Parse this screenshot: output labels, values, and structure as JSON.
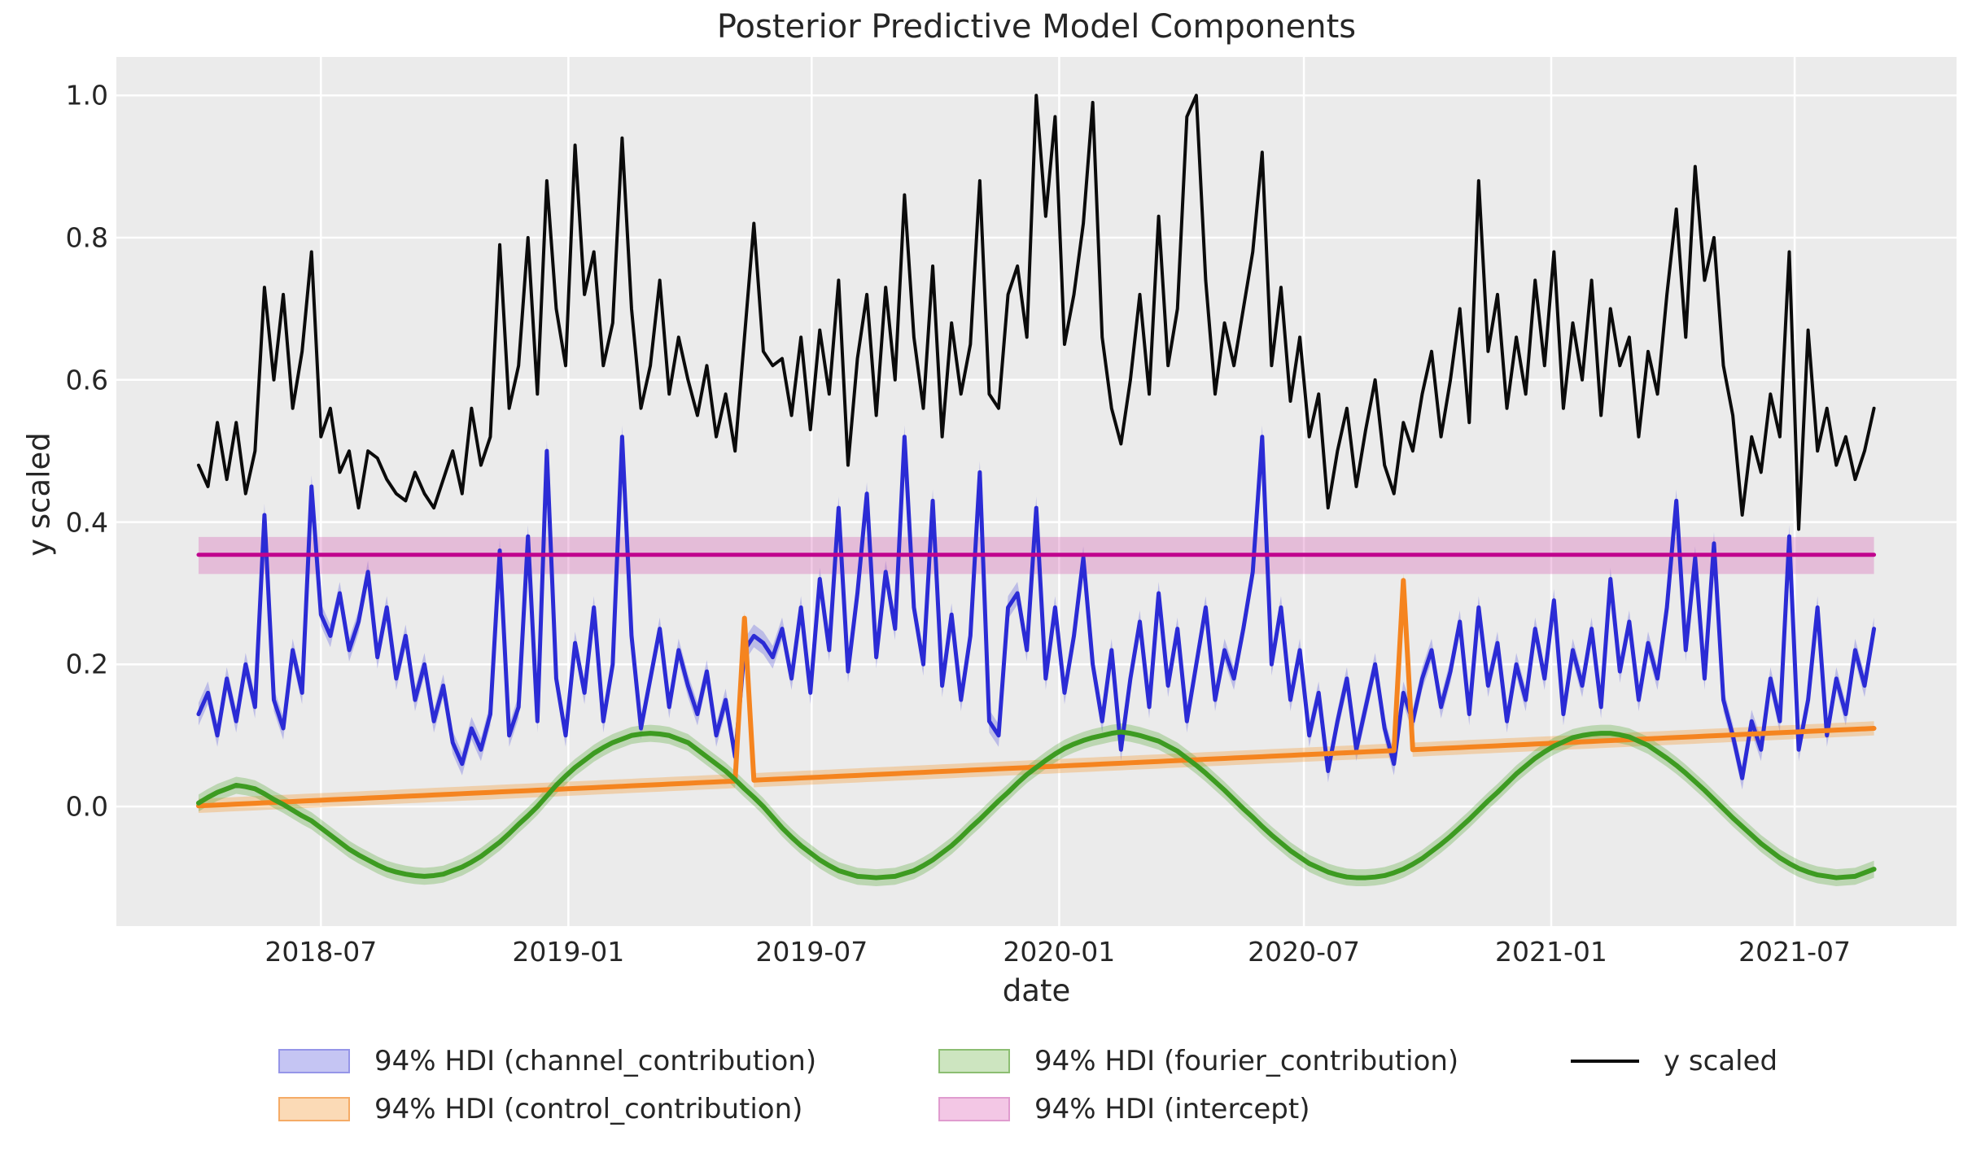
{
  "title": "Posterior Predictive Model Components",
  "xlabel": "date",
  "ylabel": "y scaled",
  "background": {
    "axes_bg": "#ebebeb",
    "grid_color": "#ffffff",
    "figure_bg": "#ffffff"
  },
  "legend": {
    "items": [
      {
        "label": "94% HDI (channel_contribution)",
        "swatch": "patch",
        "fill": "#c5c5f3",
        "stroke": "#9595e8"
      },
      {
        "label": "94% HDI (control_contribution)",
        "swatch": "patch",
        "fill": "#fbdab6",
        "stroke": "#f5ab66"
      },
      {
        "label": "94% HDI (fourier_contribution)",
        "swatch": "patch",
        "fill": "#cde5c0",
        "stroke": "#8cbe72"
      },
      {
        "label": "94% HDI (intercept)",
        "swatch": "patch",
        "fill": "#f3c7e5",
        "stroke": "#e09ccf"
      },
      {
        "label": "y scaled",
        "swatch": "line",
        "stroke": "#0b0b0b"
      }
    ]
  },
  "chart_data": {
    "type": "line",
    "title": "Posterior Predictive Model Components",
    "xlabel": "date",
    "ylabel": "y scaled",
    "x_unit": "weeks since 2018-04-01 (weekly samples)",
    "n_points": 179,
    "xlim_weeks": [
      -8.73,
      186.77
    ],
    "ylim": [
      -0.168,
      1.054
    ],
    "grid": true,
    "legend_position": "below",
    "x_ticks": [
      {
        "week": 13.0,
        "label": "2018-07"
      },
      {
        "week": 39.29,
        "label": "2019-01"
      },
      {
        "week": 65.14,
        "label": "2019-07"
      },
      {
        "week": 91.43,
        "label": "2020-01"
      },
      {
        "week": 117.43,
        "label": "2020-07"
      },
      {
        "week": 143.71,
        "label": "2021-01"
      },
      {
        "week": 169.57,
        "label": "2021-07"
      }
    ],
    "y_ticks": [
      {
        "value": 0.0,
        "label": "0.0"
      },
      {
        "value": 0.2,
        "label": "0.2"
      },
      {
        "value": 0.4,
        "label": "0.4"
      },
      {
        "value": 0.6,
        "label": "0.6"
      },
      {
        "value": 0.8,
        "label": "0.8"
      },
      {
        "value": 1.0,
        "label": "1.0"
      }
    ],
    "series": [
      {
        "name": "channel_contribution",
        "kind": "line+hdi",
        "color": "#2b2bd5",
        "band_color": "rgba(70,70,220,0.28)",
        "line_width": 5,
        "hdi_halfwidth": 0.016,
        "values": [
          0.13,
          0.16,
          0.1,
          0.18,
          0.12,
          0.2,
          0.14,
          0.41,
          0.15,
          0.11,
          0.22,
          0.16,
          0.45,
          0.27,
          0.24,
          0.3,
          0.22,
          0.26,
          0.33,
          0.21,
          0.28,
          0.18,
          0.24,
          0.15,
          0.2,
          0.12,
          0.17,
          0.09,
          0.06,
          0.11,
          0.08,
          0.13,
          0.36,
          0.1,
          0.14,
          0.38,
          0.12,
          0.5,
          0.18,
          0.1,
          0.23,
          0.16,
          0.28,
          0.12,
          0.2,
          0.52,
          0.24,
          0.11,
          0.18,
          0.25,
          0.14,
          0.22,
          0.17,
          0.13,
          0.19,
          0.1,
          0.15,
          0.07,
          0.22,
          0.24,
          0.23,
          0.21,
          0.25,
          0.18,
          0.28,
          0.16,
          0.32,
          0.22,
          0.42,
          0.19,
          0.3,
          0.44,
          0.21,
          0.33,
          0.25,
          0.52,
          0.28,
          0.2,
          0.43,
          0.17,
          0.27,
          0.15,
          0.24,
          0.47,
          0.12,
          0.1,
          0.28,
          0.3,
          0.22,
          0.42,
          0.18,
          0.28,
          0.16,
          0.24,
          0.35,
          0.2,
          0.12,
          0.22,
          0.08,
          0.18,
          0.26,
          0.14,
          0.3,
          0.17,
          0.25,
          0.12,
          0.2,
          0.28,
          0.15,
          0.22,
          0.18,
          0.25,
          0.33,
          0.52,
          0.2,
          0.28,
          0.15,
          0.22,
          0.1,
          0.16,
          0.05,
          0.12,
          0.18,
          0.08,
          0.14,
          0.2,
          0.11,
          0.06,
          0.16,
          0.12,
          0.18,
          0.22,
          0.14,
          0.19,
          0.26,
          0.13,
          0.28,
          0.17,
          0.23,
          0.12,
          0.2,
          0.15,
          0.25,
          0.18,
          0.29,
          0.13,
          0.22,
          0.17,
          0.25,
          0.14,
          0.32,
          0.19,
          0.26,
          0.15,
          0.23,
          0.18,
          0.28,
          0.43,
          0.22,
          0.35,
          0.18,
          0.37,
          0.15,
          0.1,
          0.04,
          0.12,
          0.08,
          0.18,
          0.12,
          0.38,
          0.08,
          0.15,
          0.28,
          0.1,
          0.18,
          0.13,
          0.22,
          0.17,
          0.25
        ]
      },
      {
        "name": "control_contribution",
        "kind": "ramp+spikes",
        "color": "#f5841f",
        "band_color": "rgba(245,150,40,0.32)",
        "line_width": 6,
        "hdi_halfwidth": 0.01,
        "ramp_start": 0.001,
        "ramp_end": 0.11,
        "spikes": {
          "58": 0.265,
          "128": 0.318
        }
      },
      {
        "name": "fourier_contribution",
        "kind": "line+hdi",
        "color": "#3d9b21",
        "band_color": "rgba(90,170,60,0.32)",
        "line_width": 6,
        "hdi_halfwidth": 0.012,
        "values": [
          0.005,
          0.013,
          0.02,
          0.025,
          0.03,
          0.028,
          0.025,
          0.018,
          0.01,
          0.003,
          -0.005,
          -0.013,
          -0.02,
          -0.03,
          -0.04,
          -0.05,
          -0.06,
          -0.068,
          -0.075,
          -0.082,
          -0.088,
          -0.092,
          -0.095,
          -0.097,
          -0.098,
          -0.097,
          -0.095,
          -0.09,
          -0.085,
          -0.078,
          -0.07,
          -0.06,
          -0.05,
          -0.038,
          -0.025,
          -0.013,
          0.0,
          0.015,
          0.03,
          0.043,
          0.055,
          0.065,
          0.075,
          0.083,
          0.09,
          0.095,
          0.1,
          0.102,
          0.103,
          0.102,
          0.1,
          0.095,
          0.09,
          0.08,
          0.07,
          0.06,
          0.05,
          0.038,
          0.025,
          0.013,
          0.0,
          -0.015,
          -0.03,
          -0.043,
          -0.055,
          -0.065,
          -0.075,
          -0.083,
          -0.09,
          -0.094,
          -0.098,
          -0.099,
          -0.1,
          -0.099,
          -0.098,
          -0.094,
          -0.09,
          -0.083,
          -0.075,
          -0.065,
          -0.055,
          -0.043,
          -0.03,
          -0.018,
          -0.005,
          0.008,
          0.02,
          0.033,
          0.045,
          0.055,
          0.065,
          0.074,
          0.082,
          0.088,
          0.093,
          0.097,
          0.1,
          0.103,
          0.105,
          0.103,
          0.1,
          0.096,
          0.092,
          0.085,
          0.078,
          0.068,
          0.058,
          0.047,
          0.035,
          0.023,
          0.01,
          -0.003,
          -0.015,
          -0.028,
          -0.04,
          -0.051,
          -0.062,
          -0.071,
          -0.08,
          -0.086,
          -0.092,
          -0.096,
          -0.099,
          -0.1,
          -0.1,
          -0.099,
          -0.097,
          -0.093,
          -0.088,
          -0.081,
          -0.073,
          -0.063,
          -0.053,
          -0.042,
          -0.03,
          -0.018,
          -0.005,
          0.008,
          0.02,
          0.033,
          0.046,
          0.057,
          0.068,
          0.077,
          0.085,
          0.091,
          0.097,
          0.1,
          0.102,
          0.103,
          0.103,
          0.101,
          0.098,
          0.092,
          0.086,
          0.077,
          0.068,
          0.058,
          0.047,
          0.035,
          0.023,
          0.01,
          -0.003,
          -0.016,
          -0.028,
          -0.04,
          -0.052,
          -0.062,
          -0.072,
          -0.08,
          -0.087,
          -0.092,
          -0.096,
          -0.098,
          -0.1,
          -0.099,
          -0.098,
          -0.093,
          -0.088
        ]
      },
      {
        "name": "intercept",
        "kind": "hline+hdi",
        "color": "#c0048e",
        "band_color": "rgba(214,100,180,0.35)",
        "line_width": 5,
        "mean": 0.354,
        "hdi": [
          0.327,
          0.379
        ]
      },
      {
        "name": "y scaled",
        "kind": "line",
        "color": "#0b0b0b",
        "line_width": 4,
        "values": [
          0.48,
          0.45,
          0.54,
          0.46,
          0.54,
          0.44,
          0.5,
          0.73,
          0.6,
          0.72,
          0.56,
          0.64,
          0.78,
          0.52,
          0.56,
          0.47,
          0.5,
          0.42,
          0.5,
          0.49,
          0.46,
          0.44,
          0.43,
          0.47,
          0.44,
          0.42,
          0.46,
          0.5,
          0.44,
          0.56,
          0.48,
          0.52,
          0.79,
          0.56,
          0.62,
          0.8,
          0.58,
          0.88,
          0.7,
          0.62,
          0.93,
          0.72,
          0.78,
          0.62,
          0.68,
          0.94,
          0.7,
          0.56,
          0.62,
          0.74,
          0.58,
          0.66,
          0.6,
          0.55,
          0.62,
          0.52,
          0.58,
          0.5,
          0.66,
          0.82,
          0.64,
          0.62,
          0.63,
          0.55,
          0.66,
          0.53,
          0.67,
          0.58,
          0.74,
          0.48,
          0.63,
          0.72,
          0.55,
          0.73,
          0.6,
          0.86,
          0.66,
          0.56,
          0.76,
          0.52,
          0.68,
          0.58,
          0.65,
          0.88,
          0.58,
          0.56,
          0.72,
          0.76,
          0.66,
          1.0,
          0.83,
          0.97,
          0.65,
          0.72,
          0.82,
          0.99,
          0.66,
          0.56,
          0.51,
          0.6,
          0.72,
          0.58,
          0.83,
          0.62,
          0.7,
          0.97,
          1.0,
          0.74,
          0.58,
          0.68,
          0.62,
          0.7,
          0.78,
          0.92,
          0.62,
          0.73,
          0.57,
          0.66,
          0.52,
          0.58,
          0.42,
          0.5,
          0.56,
          0.45,
          0.53,
          0.6,
          0.48,
          0.44,
          0.54,
          0.5,
          0.58,
          0.64,
          0.52,
          0.6,
          0.7,
          0.54,
          0.88,
          0.64,
          0.72,
          0.56,
          0.66,
          0.58,
          0.74,
          0.62,
          0.78,
          0.56,
          0.68,
          0.6,
          0.74,
          0.55,
          0.7,
          0.62,
          0.66,
          0.52,
          0.64,
          0.58,
          0.72,
          0.84,
          0.66,
          0.9,
          0.74,
          0.8,
          0.62,
          0.55,
          0.41,
          0.52,
          0.47,
          0.58,
          0.52,
          0.78,
          0.39,
          0.67,
          0.5,
          0.56,
          0.48,
          0.52,
          0.46,
          0.5,
          0.56
        ]
      }
    ]
  }
}
